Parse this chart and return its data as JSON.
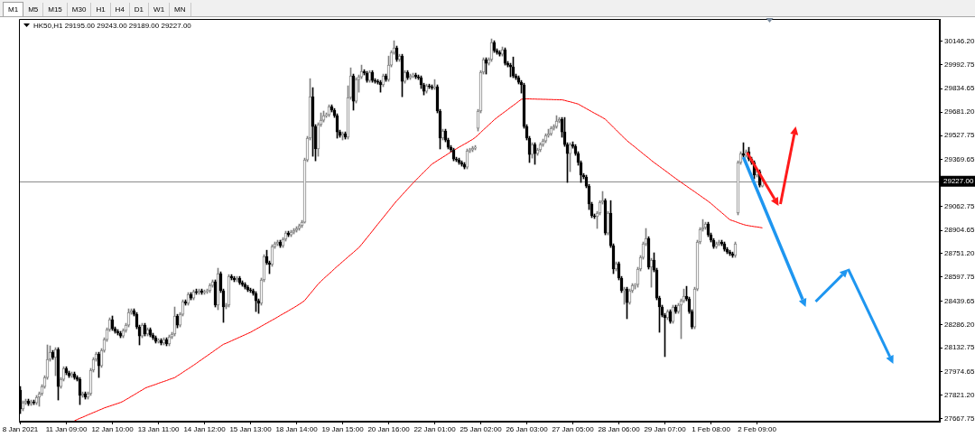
{
  "chart_data": {
    "type": "candlestick",
    "title": "HK50,H1 29195.00 29243.00 29189.00 29227.00",
    "annotations": [
      "M1",
      "M5",
      "M15",
      "M30",
      "H1",
      "H4",
      "D1",
      "W1",
      "MN"
    ],
    "categories": [
      "8 Jan 2021",
      null,
      null,
      null,
      null,
      null,
      null,
      null,
      null,
      null,
      null,
      null,
      null,
      null,
      null,
      null,
      null,
      "11 Jan 09:00",
      null,
      null,
      null,
      null,
      null,
      null,
      null,
      null,
      null,
      null,
      null,
      null,
      null,
      null,
      null,
      null,
      "12 Jan 10:00",
      null,
      null,
      null,
      null,
      null,
      null,
      null,
      null,
      null,
      null,
      null,
      null,
      null,
      null,
      null,
      null,
      "13 Jan 11:00",
      null,
      null,
      null,
      null,
      null,
      null,
      null,
      null,
      null,
      null,
      null,
      null,
      null,
      null,
      null,
      null,
      "14 Jan 12:00",
      null,
      null,
      null,
      null,
      null,
      null,
      null,
      null,
      null,
      null,
      null,
      null,
      null,
      null,
      null,
      null,
      "15 Jan 13:00",
      null,
      null,
      null,
      null,
      null,
      null,
      null,
      null,
      null,
      null,
      null,
      null,
      null,
      null,
      null,
      null,
      "18 Jan 14:00",
      null,
      null,
      null,
      null,
      null,
      null,
      null,
      null,
      null,
      null,
      null,
      null,
      null,
      null,
      null,
      null,
      "19 Jan 15:00",
      null,
      null,
      null,
      null,
      null,
      null,
      null,
      null,
      null,
      null,
      null,
      null,
      null,
      null,
      null,
      null,
      "20 Jan 16:00",
      null,
      null,
      null,
      null,
      null,
      null,
      null,
      null,
      null,
      null,
      null,
      null,
      null,
      null,
      null,
      null,
      "22 Jan 01:00",
      null,
      null,
      null,
      null,
      null,
      null,
      null,
      null,
      null,
      null,
      null,
      null,
      null,
      null,
      null,
      null,
      "25 Jan 02:00",
      null,
      null,
      null,
      null,
      null,
      null,
      null,
      null,
      null,
      null,
      null,
      null,
      null,
      null,
      null,
      null,
      "26 Jan 03:00",
      null,
      null,
      null,
      null,
      null,
      null,
      null,
      null,
      null,
      null,
      null,
      null,
      null,
      null,
      null,
      null,
      "27 Jan 05:00",
      null,
      null,
      null,
      null,
      null,
      null,
      null,
      null,
      null,
      null,
      null,
      null,
      null,
      null,
      null,
      null,
      "28 Jan 06:00",
      null,
      null,
      null,
      null,
      null,
      null,
      null,
      null,
      null,
      null,
      null,
      null,
      null,
      null,
      null,
      null,
      "29 Jan 07:00",
      null,
      null,
      null,
      null,
      null,
      null,
      null,
      null,
      null,
      null,
      null,
      null,
      null,
      null,
      null,
      null,
      "1 Feb 08:00",
      null,
      null,
      null,
      null,
      null,
      null,
      null,
      null,
      null,
      null,
      null,
      null,
      null,
      null,
      null,
      null,
      "2 Feb 09:00",
      null,
      null,
      null,
      null,
      null,
      null,
      null,
      null,
      null,
      null,
      null,
      null,
      null,
      null,
      null,
      null,
      null,
      null,
      null,
      null,
      null,
      null,
      null,
      null,
      null,
      null,
      null,
      null,
      null,
      null,
      null,
      null,
      null,
      null,
      null,
      null,
      null,
      null,
      null,
      null,
      null,
      null,
      null,
      null,
      null,
      null,
      null,
      null,
      null,
      null,
      null,
      null,
      null,
      null,
      null,
      null,
      null,
      null,
      null,
      null,
      null,
      null,
      null,
      null,
      null,
      null,
      null
    ],
    "ohlc": [
      [
        27855,
        27879,
        27701,
        27731
      ],
      [
        27731,
        27784,
        27719,
        27772
      ],
      [
        27772,
        27796,
        27760,
        27784
      ],
      [
        27784,
        27796,
        27754,
        27766
      ],
      [
        27766,
        27790,
        27754,
        27778
      ],
      [
        27778,
        27790,
        27760,
        27772
      ],
      [
        27772,
        27820,
        27760,
        27808
      ],
      [
        27808,
        27843,
        27749,
        27832
      ],
      [
        27832,
        27891,
        27820,
        27879
      ],
      [
        27879,
        27950,
        27867,
        27938
      ],
      [
        27938,
        28152,
        27926,
        28057
      ],
      [
        28057,
        28146,
        28045,
        28104
      ],
      [
        28104,
        28116,
        28057,
        28069
      ],
      [
        28069,
        28134,
        27950,
        28122
      ],
      [
        28122,
        28134,
        27790,
        27879
      ],
      [
        27879,
        27938,
        27867,
        27926
      ],
      [
        27926,
        28009,
        27915,
        27998
      ],
      [
        27998,
        28009,
        27956,
        27968
      ],
      [
        27968,
        27980,
        27938,
        27950
      ],
      [
        27950,
        27974,
        27938,
        27962
      ],
      [
        27962,
        27974,
        27926,
        27938
      ],
      [
        27938,
        27950,
        27915,
        27926
      ],
      [
        27926,
        27938,
        27760,
        27820
      ],
      [
        27820,
        27843,
        27808,
        27832
      ],
      [
        27832,
        27843,
        27796,
        27808
      ],
      [
        27808,
        27843,
        27796,
        27832
      ],
      [
        27832,
        27998,
        27820,
        27986
      ],
      [
        27986,
        28069,
        27974,
        28057
      ],
      [
        28057,
        28104,
        28045,
        28092
      ],
      [
        28092,
        28104,
        27938,
        28015
      ],
      [
        28015,
        28128,
        28004,
        28116
      ],
      [
        28116,
        28199,
        28104,
        28187
      ],
      [
        28187,
        28264,
        28175,
        28253
      ],
      [
        28253,
        28330,
        28241,
        28318
      ],
      [
        28318,
        28342,
        28247,
        28258
      ],
      [
        28258,
        28270,
        28229,
        28241
      ],
      [
        28241,
        28253,
        28217,
        28229
      ],
      [
        28229,
        28241,
        28199,
        28211
      ],
      [
        28211,
        28258,
        28199,
        28247
      ],
      [
        28247,
        28294,
        28235,
        28282
      ],
      [
        28282,
        28389,
        28270,
        28365
      ],
      [
        28365,
        28389,
        28353,
        28377
      ],
      [
        28377,
        28389,
        28342,
        28353
      ],
      [
        28353,
        28365,
        28258,
        28270
      ],
      [
        28270,
        28282,
        28152,
        28211
      ],
      [
        28211,
        28294,
        28199,
        28282
      ],
      [
        28282,
        28294,
        28211,
        28223
      ],
      [
        28223,
        28264,
        28211,
        28253
      ],
      [
        28253,
        28264,
        28205,
        28217
      ],
      [
        28217,
        28229,
        28187,
        28199
      ],
      [
        28199,
        28211,
        28164,
        28175
      ],
      [
        28175,
        28193,
        28164,
        28181
      ],
      [
        28181,
        28193,
        28152,
        28164
      ],
      [
        28164,
        28199,
        28152,
        28187
      ],
      [
        28187,
        28199,
        28146,
        28158
      ],
      [
        28158,
        28217,
        28146,
        28205
      ],
      [
        28205,
        28235,
        28193,
        28223
      ],
      [
        28223,
        28401,
        28211,
        28342
      ],
      [
        28342,
        28353,
        28264,
        28282
      ],
      [
        28282,
        28365,
        28270,
        28353
      ],
      [
        28353,
        28448,
        28342,
        28436
      ],
      [
        28436,
        28448,
        28413,
        28425
      ],
      [
        28425,
        28496,
        28413,
        28484
      ],
      [
        28484,
        28496,
        28448,
        28460
      ],
      [
        28460,
        28513,
        28448,
        28502
      ],
      [
        28502,
        28519,
        28484,
        28496
      ],
      [
        28496,
        28519,
        28484,
        28508
      ],
      [
        28508,
        28519,
        28484,
        28496
      ],
      [
        28496,
        28513,
        28484,
        28502
      ],
      [
        28502,
        28519,
        28490,
        28508
      ],
      [
        28508,
        28555,
        28496,
        28543
      ],
      [
        28543,
        28579,
        28531,
        28567
      ],
      [
        28567,
        28579,
        28401,
        28413
      ],
      [
        28413,
        28656,
        28383,
        28620
      ],
      [
        28620,
        28632,
        28496,
        28508
      ],
      [
        28508,
        28519,
        28300,
        28401
      ],
      [
        28401,
        28425,
        28389,
        28413
      ],
      [
        28413,
        28614,
        28401,
        28602
      ],
      [
        28602,
        28614,
        28579,
        28591
      ],
      [
        28591,
        28602,
        28567,
        28579
      ],
      [
        28579,
        28602,
        28567,
        28591
      ],
      [
        28591,
        28602,
        28549,
        28561
      ],
      [
        28561,
        28573,
        28537,
        28549
      ],
      [
        28549,
        28561,
        28519,
        28531
      ],
      [
        28531,
        28543,
        28502,
        28513
      ],
      [
        28513,
        28525,
        28496,
        28508
      ],
      [
        28508,
        28519,
        28478,
        28490
      ],
      [
        28490,
        28502,
        28371,
        28442
      ],
      [
        28442,
        28454,
        28359,
        28425
      ],
      [
        28425,
        28591,
        28413,
        28579
      ],
      [
        28579,
        28745,
        28567,
        28733
      ],
      [
        28733,
        28774,
        28680,
        28691
      ],
      [
        28691,
        28703,
        28620,
        28680
      ],
      [
        28680,
        28810,
        28668,
        28798
      ],
      [
        28798,
        28828,
        28786,
        28816
      ],
      [
        28816,
        28840,
        28804,
        28828
      ],
      [
        28828,
        28840,
        28792,
        28804
      ],
      [
        28804,
        28857,
        28792,
        28846
      ],
      [
        28846,
        28899,
        28834,
        28887
      ],
      [
        28887,
        28899,
        28863,
        28875
      ],
      [
        28875,
        28905,
        28863,
        28893
      ],
      [
        28893,
        28917,
        28881,
        28905
      ],
      [
        28905,
        28929,
        28893,
        28917
      ],
      [
        28917,
        28946,
        28905,
        28935
      ],
      [
        28935,
        28970,
        28923,
        28958
      ],
      [
        28958,
        29379,
        28952,
        29367
      ],
      [
        29367,
        29522,
        29356,
        29510
      ],
      [
        29510,
        29901,
        29498,
        29782
      ],
      [
        29782,
        29842,
        29391,
        29587
      ],
      [
        29587,
        29599,
        29361,
        29439
      ],
      [
        29439,
        29611,
        29391,
        29599
      ],
      [
        29599,
        29676,
        29587,
        29628
      ],
      [
        29628,
        29688,
        29616,
        29658
      ],
      [
        29658,
        29676,
        29646,
        29664
      ],
      [
        29664,
        29729,
        29652,
        29717
      ],
      [
        29717,
        29729,
        29682,
        29694
      ],
      [
        29694,
        29705,
        29646,
        29658
      ],
      [
        29658,
        29670,
        29510,
        29551
      ],
      [
        29551,
        29563,
        29516,
        29528
      ],
      [
        29528,
        29551,
        29498,
        29539
      ],
      [
        29539,
        29551,
        29504,
        29516
      ],
      [
        29516,
        29854,
        29504,
        29777
      ],
      [
        29777,
        29972,
        29765,
        29919
      ],
      [
        29919,
        29931,
        29694,
        29753
      ],
      [
        29753,
        29907,
        29741,
        29895
      ],
      [
        29895,
        29925,
        29812,
        29913
      ],
      [
        29913,
        29990,
        29901,
        29949
      ],
      [
        29949,
        29960,
        29925,
        29937
      ],
      [
        29937,
        29949,
        29877,
        29889
      ],
      [
        29889,
        29954,
        29877,
        29943
      ],
      [
        29943,
        29954,
        29877,
        29889
      ],
      [
        29889,
        29901,
        29871,
        29883
      ],
      [
        29883,
        29895,
        29865,
        29877
      ],
      [
        29877,
        29889,
        29812,
        29860
      ],
      [
        29860,
        29931,
        29848,
        29919
      ],
      [
        29919,
        29931,
        29883,
        29895
      ],
      [
        29895,
        30049,
        29883,
        29990
      ],
      [
        29990,
        30085,
        29978,
        30073
      ],
      [
        30073,
        30150,
        30061,
        30103
      ],
      [
        30103,
        30115,
        30014,
        30026
      ],
      [
        30026,
        30061,
        30014,
        30049
      ],
      [
        30049,
        30061,
        29782,
        29883
      ],
      [
        29883,
        29954,
        29871,
        29943
      ],
      [
        29943,
        29954,
        29895,
        29907
      ],
      [
        29907,
        29931,
        29895,
        29919
      ],
      [
        29919,
        29937,
        29907,
        29925
      ],
      [
        29925,
        29937,
        29901,
        29913
      ],
      [
        29913,
        29925,
        29895,
        29907
      ],
      [
        29907,
        29919,
        29836,
        29860
      ],
      [
        29860,
        29871,
        29794,
        29818
      ],
      [
        29818,
        29865,
        29806,
        29854
      ],
      [
        29854,
        29865,
        29836,
        29848
      ],
      [
        29848,
        29860,
        29830,
        29842
      ],
      [
        29842,
        29895,
        29830,
        29848
      ],
      [
        29848,
        29860,
        29676,
        29688
      ],
      [
        29688,
        29699,
        29439,
        29510
      ],
      [
        29510,
        29569,
        29498,
        29557
      ],
      [
        29557,
        29569,
        29486,
        29498
      ],
      [
        29498,
        29510,
        29439,
        29450
      ],
      [
        29450,
        29462,
        29421,
        29433
      ],
      [
        29433,
        29444,
        29361,
        29373
      ],
      [
        29373,
        29385,
        29356,
        29367
      ],
      [
        29367,
        29379,
        29338,
        29350
      ],
      [
        29350,
        29361,
        29326,
        29338
      ],
      [
        29338,
        29350,
        29308,
        29320
      ],
      [
        29320,
        29439,
        29308,
        29427
      ],
      [
        29427,
        29444,
        29415,
        29433
      ],
      [
        29433,
        29456,
        29421,
        29444
      ],
      [
        29444,
        29462,
        29433,
        29450
      ],
      [
        29575,
        29699,
        29557,
        29688
      ],
      [
        29688,
        29954,
        29676,
        29943
      ],
      [
        29943,
        30038,
        29931,
        30026
      ],
      [
        30026,
        30038,
        29931,
        30002
      ],
      [
        30002,
        30038,
        29990,
        30026
      ],
      [
        30026,
        30162,
        30014,
        30138
      ],
      [
        30138,
        30150,
        30073,
        30085
      ],
      [
        30085,
        30097,
        30061,
        30073
      ],
      [
        30073,
        30085,
        30049,
        30061
      ],
      [
        30061,
        30109,
        30049,
        30091
      ],
      [
        30091,
        30103,
        29990,
        30002
      ],
      [
        30002,
        30014,
        29978,
        29990
      ],
      [
        29990,
        30002,
        29913,
        29978
      ],
      [
        29978,
        30043,
        29907,
        29919
      ],
      [
        29919,
        29931,
        29895,
        29907
      ],
      [
        29907,
        29919,
        29866,
        29877
      ],
      [
        29877,
        29889,
        29806,
        29860
      ],
      [
        29860,
        29871,
        29575,
        29587
      ],
      [
        29587,
        29599,
        29498,
        29510
      ],
      [
        29510,
        29522,
        29350,
        29403
      ],
      [
        29403,
        29480,
        29379,
        29468
      ],
      [
        29468,
        29480,
        29338,
        29409
      ],
      [
        29409,
        29444,
        29397,
        29433
      ],
      [
        29433,
        29480,
        29421,
        29468
      ],
      [
        29468,
        29504,
        29456,
        29492
      ],
      [
        29492,
        29539,
        29480,
        29528
      ],
      [
        29528,
        29569,
        29516,
        29539
      ],
      [
        29539,
        29587,
        29528,
        29575
      ],
      [
        29575,
        29599,
        29563,
        29587
      ],
      [
        29587,
        29658,
        29575,
        29622
      ],
      [
        29622,
        29646,
        29611,
        29634
      ],
      [
        29634,
        29646,
        29516,
        29551
      ],
      [
        29551,
        29646,
        29456,
        29468
      ],
      [
        29468,
        29480,
        29219,
        29409
      ],
      [
        29409,
        29480,
        29290,
        29468
      ],
      [
        29468,
        29486,
        29444,
        29456
      ],
      [
        29456,
        29468,
        29397,
        29409
      ],
      [
        29409,
        29421,
        29332,
        29350
      ],
      [
        29350,
        29361,
        29219,
        29267
      ],
      [
        29267,
        29278,
        29243,
        29255
      ],
      [
        29255,
        29267,
        29184,
        29195
      ],
      [
        29195,
        29207,
        29041,
        29077
      ],
      [
        29077,
        29089,
        28988,
        29000
      ],
      [
        29000,
        29012,
        28982,
        28994
      ],
      [
        28994,
        29029,
        28917,
        29018
      ],
      [
        29018,
        29100,
        29006,
        29089
      ],
      [
        29089,
        29160,
        29077,
        29100
      ],
      [
        29100,
        29112,
        28875,
        28887
      ],
      [
        28887,
        29029,
        28875,
        29018
      ],
      [
        29018,
        29100,
        28792,
        28804
      ],
      [
        28804,
        28816,
        28620,
        28650
      ],
      [
        28650,
        28697,
        28638,
        28685
      ],
      [
        28685,
        28697,
        28579,
        28591
      ],
      [
        28591,
        28602,
        28496,
        28508
      ],
      [
        28508,
        28531,
        28419,
        28519
      ],
      [
        28519,
        28531,
        28324,
        28430
      ],
      [
        28430,
        28519,
        28419,
        28508
      ],
      [
        28508,
        28555,
        28496,
        28543
      ],
      [
        28543,
        28555,
        28519,
        28549
      ],
      [
        28549,
        28662,
        28531,
        28650
      ],
      [
        28650,
        28739,
        28638,
        28727
      ],
      [
        28727,
        28828,
        28715,
        28816
      ],
      [
        28816,
        28917,
        28804,
        28851
      ],
      [
        28851,
        28863,
        28650,
        28662
      ],
      [
        28662,
        28721,
        28531,
        28709
      ],
      [
        28709,
        28757,
        28632,
        28644
      ],
      [
        28644,
        28656,
        28448,
        28460
      ],
      [
        28460,
        28472,
        28235,
        28401
      ],
      [
        28401,
        28413,
        28336,
        28347
      ],
      [
        28347,
        28359,
        28075,
        28330
      ],
      [
        28330,
        28383,
        28318,
        28371
      ],
      [
        28371,
        28383,
        28294,
        28306
      ],
      [
        28306,
        28413,
        28294,
        28401
      ],
      [
        28401,
        28413,
        28359,
        28371
      ],
      [
        28371,
        28425,
        28359,
        28413
      ],
      [
        28413,
        28454,
        28193,
        28442
      ],
      [
        28442,
        28519,
        28430,
        28472
      ],
      [
        28472,
        28537,
        28442,
        28454
      ],
      [
        28454,
        28466,
        28359,
        28371
      ],
      [
        28371,
        28383,
        28258,
        28270
      ],
      [
        28270,
        28531,
        28258,
        28519
      ],
      [
        28519,
        28840,
        28508,
        28828
      ],
      [
        28828,
        28923,
        28816,
        28911
      ],
      [
        28911,
        28976,
        28899,
        28923
      ],
      [
        28923,
        28958,
        28911,
        28946
      ],
      [
        28946,
        28958,
        28863,
        28875
      ],
      [
        28875,
        28887,
        28828,
        28840
      ],
      [
        28840,
        28851,
        28786,
        28798
      ],
      [
        28798,
        28828,
        28786,
        28816
      ],
      [
        28816,
        28840,
        28804,
        28828
      ],
      [
        28828,
        28840,
        28804,
        28816
      ],
      [
        28816,
        28828,
        28768,
        28780
      ],
      [
        28780,
        28792,
        28751,
        28762
      ],
      [
        28762,
        28774,
        28739,
        28751
      ],
      [
        28751,
        28762,
        28727,
        28739
      ],
      [
        28739,
        28828,
        28727,
        28816
      ],
      [
        29018,
        29361,
        29006,
        29350
      ],
      [
        29350,
        29421,
        29338,
        29409
      ],
      [
        29409,
        29480,
        29385,
        29397
      ],
      [
        29397,
        29433,
        29385,
        29421
      ],
      [
        29421,
        29450,
        29361,
        29373
      ],
      [
        29373,
        29385,
        29338,
        29350
      ],
      [
        29350,
        29361,
        29243,
        29267
      ],
      [
        29267,
        29302,
        29255,
        29290
      ],
      [
        29290,
        29302,
        29189,
        29201
      ],
      [
        29195,
        29243,
        29189,
        29227
      ],
      null,
      null,
      null,
      null,
      null,
      null,
      null,
      null,
      null,
      null,
      null,
      null,
      null,
      null,
      null,
      null,
      null,
      null,
      null,
      null,
      null,
      null,
      null,
      null,
      null,
      null,
      null,
      null,
      null,
      null,
      null,
      null,
      null,
      null,
      null,
      null,
      null,
      null,
      null,
      null,
      null,
      null,
      null,
      null,
      null,
      null,
      null,
      null,
      null,
      null,
      null,
      null,
      null,
      null,
      null,
      null,
      null,
      null,
      null,
      null,
      null,
      null,
      null,
      null,
      null
    ],
    "colors": [
      "#000000",
      "#808080",
      "#808080",
      "#000000",
      "#808080",
      "#000000",
      "#808080",
      "#808080",
      "#808080",
      "#808080",
      "#808080",
      "#808080",
      "#000000",
      "#808080",
      "#000000",
      "#808080",
      "#808080",
      "#000000",
      "#000000",
      "#808080",
      "#000000",
      "#000000",
      "#000000",
      "#808080",
      "#000000",
      "#808080",
      "#808080",
      "#808080",
      "#808080",
      "#000000",
      "#808080",
      "#808080",
      "#808080",
      "#808080",
      "#000000",
      "#000000",
      "#000000",
      "#000000",
      "#808080",
      "#808080",
      "#808080",
      "#808080",
      "#000000",
      "#000000",
      "#000000",
      "#808080",
      "#000000",
      "#808080",
      "#000000",
      "#000000",
      "#000000",
      "#808080",
      "#000000",
      "#808080",
      "#000000",
      "#808080",
      "#808080",
      "#808080",
      "#000000",
      "#808080",
      "#808080",
      "#000000",
      "#808080",
      "#000000",
      "#808080",
      "#000000",
      "#808080",
      "#000000",
      "#808080",
      "#808080",
      "#808080",
      "#808080",
      "#000000",
      "#808080",
      "#000000",
      "#000000",
      "#808080",
      "#808080",
      "#000000",
      "#000000",
      "#808080",
      "#000000",
      "#000000",
      "#000000",
      "#000000",
      "#000000",
      "#000000",
      "#000000",
      "#000000",
      "#808080",
      "#808080",
      "#000000",
      "#000000",
      "#808080",
      "#808080",
      "#808080",
      "#000000",
      "#808080",
      "#808080",
      "#000000",
      "#808080",
      "#808080",
      "#808080",
      "#808080",
      "#808080",
      "#808080",
      "#808080",
      "#808080",
      "#000000",
      "#000000",
      "#808080",
      "#808080",
      "#808080",
      "#808080",
      "#808080",
      "#000000",
      "#000000",
      "#000000",
      "#000000",
      "#808080",
      "#000000",
      "#808080",
      "#808080",
      "#000000",
      "#808080",
      "#808080",
      "#808080",
      "#000000",
      "#000000",
      "#808080",
      "#000000",
      "#000000",
      "#000000",
      "#000000",
      "#808080",
      "#000000",
      "#808080",
      "#808080",
      "#808080",
      "#000000",
      "#808080",
      "#000000",
      "#808080",
      "#000000",
      "#808080",
      "#808080",
      "#000000",
      "#000000",
      "#000000",
      "#000000",
      "#808080",
      "#000000",
      "#000000",
      "#808080",
      "#000000",
      "#000000",
      "#808080",
      "#000000",
      "#000000",
      "#000000",
      "#000000",
      "#000000",
      "#000000",
      "#000000",
      "#000000",
      "#808080",
      "#808080",
      "#808080",
      "#808080",
      "#808080",
      "#808080",
      "#808080",
      "#000000",
      "#808080",
      "#808080",
      "#000000",
      "#000000",
      "#000000",
      "#808080",
      "#000000",
      "#000000",
      "#000000",
      "#000000",
      "#000000",
      "#000000",
      "#000000",
      "#000000",
      "#000000",
      "#000000",
      "#808080",
      "#000000",
      "#808080",
      "#808080",
      "#808080",
      "#808080",
      "#808080",
      "#808080",
      "#808080",
      "#808080",
      "#808080",
      "#000000",
      "#000000",
      "#000000",
      "#808080",
      "#000000",
      "#000000",
      "#000000",
      "#000000",
      "#000000",
      "#000000",
      "#000000",
      "#000000",
      "#000000",
      "#808080",
      "#808080",
      "#808080",
      "#000000",
      "#808080",
      "#000000",
      "#000000",
      "#808080",
      "#000000",
      "#000000",
      "#808080",
      "#000000",
      "#808080",
      "#808080",
      "#808080",
      "#808080",
      "#808080",
      "#808080",
      "#808080",
      "#000000",
      "#808080",
      "#000000",
      "#000000",
      "#000000",
      "#000000",
      "#000000",
      "#808080",
      "#000000",
      "#808080",
      "#000000",
      "#808080",
      "#808080",
      "#808080",
      "#000000",
      "#000000",
      "#000000",
      "#808080",
      "#808080",
      "#808080",
      "#808080",
      "#808080",
      "#000000",
      "#000000",
      "#000000",
      "#808080",
      "#808080",
      "#000000",
      "#000000",
      "#000000",
      "#000000",
      "#000000",
      "#808080",
      "#808080",
      "#808080",
      "#000000",
      "#808080",
      "#000000",
      "#000000",
      "#000000",
      "#808080",
      "#000000",
      "#808080",
      null,
      null,
      null,
      null,
      null,
      null,
      null,
      null,
      null,
      null,
      null,
      null,
      null,
      null,
      null,
      null,
      null,
      null,
      null,
      null,
      null,
      null,
      null,
      null,
      null,
      null,
      null,
      null,
      null,
      null,
      null,
      null,
      null,
      null,
      null,
      null,
      null,
      null,
      null,
      null,
      null,
      null,
      null,
      null,
      null,
      null,
      null,
      null,
      null,
      null,
      null,
      null,
      null,
      null,
      null,
      null,
      null,
      null,
      null,
      null,
      null,
      null,
      null,
      null,
      null
    ],
    "series": [
      {
        "type": "line",
        "color": "#ff0000",
        "values": [
          null,
          null,
          null,
          null,
          null,
          null,
          null,
          null,
          null,
          null,
          null,
          null,
          null,
          null,
          null,
          null,
          null,
          null,
          null,
          null,
          27654,
          27662,
          27670,
          27677,
          27685,
          27693,
          27700,
          27708,
          27715,
          27723,
          27730,
          27738,
          27744,
          27750,
          27756,
          27762,
          27768,
          27774,
          27782,
          27793,
          27803,
          27814,
          27824,
          27835,
          27846,
          27856,
          27867,
          27875,
          27881,
          27887,
          27893,
          27900,
          27906,
          27912,
          27918,
          27925,
          27931,
          27937,
          27949,
          27960,
          27972,
          27984,
          27995,
          28007,
          28019,
          28031,
          28044,
          28056,
          28069,
          28081,
          28094,
          28106,
          28119,
          28131,
          28144,
          28156,
          28163,
          28171,
          28179,
          28187,
          28195,
          28203,
          28211,
          28219,
          28227,
          28235,
          28245,
          28255,
          28265,
          28275,
          28285,
          28295,
          28305,
          28315,
          28325,
          28335,
          28346,
          28356,
          28366,
          28376,
          28387,
          28397,
          28408,
          28419,
          28431,
          28444,
          28466,
          28488,
          28509,
          28531,
          28552,
          28570,
          28587,
          28603,
          28619,
          28635,
          28652,
          28668,
          28683,
          28699,
          28714,
          28730,
          28745,
          28760,
          28776,
          28791,
          28812,
          28834,
          28856,
          28878,
          28900,
          28923,
          28945,
          28967,
          28989,
          29011,
          29033,
          29056,
          29078,
          29099,
          29118,
          29138,
          29157,
          29177,
          29196,
          29215,
          29233,
          29251,
          29269,
          29287,
          29304,
          29322,
          29340,
          29351,
          29363,
          29374,
          29385,
          29396,
          29408,
          29419,
          29430,
          29440,
          29451,
          29461,
          29471,
          29481,
          29492,
          29502,
          29515,
          29531,
          29548,
          29565,
          29581,
          29598,
          29614,
          29631,
          29645,
          29659,
          29672,
          29685,
          29698,
          29712,
          29725,
          29738,
          29752,
          29765,
          29769,
          29768,
          29768,
          29767,
          29767,
          29766,
          29766,
          29765,
          29765,
          29764,
          29764,
          29763,
          29763,
          29762,
          29762,
          29758,
          29753,
          29749,
          29744,
          29739,
          29734,
          29724,
          29714,
          29704,
          29694,
          29684,
          29674,
          29665,
          29655,
          29645,
          29634,
          29617,
          29599,
          29581,
          29564,
          29546,
          29528,
          29511,
          29494,
          29479,
          29465,
          29451,
          29436,
          29422,
          29407,
          29393,
          29379,
          29364,
          29350,
          29337,
          29324,
          29311,
          29298,
          29285,
          29271,
          29258,
          29245,
          29232,
          29220,
          29207,
          29195,
          29182,
          29170,
          29158,
          29145,
          29133,
          29120,
          29108,
          29095,
          29081,
          29066,
          29050,
          29035,
          29020,
          29005,
          28989,
          28974,
          28968,
          28962,
          28955,
          28949,
          28943,
          28938,
          28935,
          28932,
          28929,
          28927,
          28924,
          28921,
          null,
          null,
          null,
          null,
          null,
          null,
          null,
          null,
          null,
          null,
          null,
          null,
          null,
          null,
          null,
          null,
          null,
          null,
          null,
          null,
          null,
          null,
          null,
          null,
          null,
          null,
          null,
          null,
          null,
          null,
          null,
          null,
          null,
          null,
          null,
          null,
          null,
          null,
          null,
          null,
          null,
          null,
          null,
          null,
          null,
          null,
          null,
          null,
          null,
          null,
          null,
          null,
          null,
          null,
          null,
          null,
          null,
          null,
          null,
          null,
          null,
          null,
          null,
          null,
          null
        ]
      }
    ],
    "ylim": [
      27648,
      30293
    ],
    "yticks": [
      {
        "value": 30146.2,
        "label": "30146.20"
      },
      {
        "value": 29992.75,
        "label": "29992.75"
      },
      {
        "value": 29834.65,
        "label": "29834.65"
      },
      {
        "value": 29681.2,
        "label": "29681.20"
      },
      {
        "value": 29527.75,
        "label": "29527.75"
      },
      {
        "value": 29369.65,
        "label": "29369.65"
      },
      {
        "value": 29062.75,
        "label": "29062.75"
      },
      {
        "value": 28904.65,
        "label": "28904.65"
      },
      {
        "value": 28751.2,
        "label": "28751.20"
      },
      {
        "value": 28597.75,
        "label": "28597.75"
      },
      {
        "value": 28439.65,
        "label": "28439.65"
      },
      {
        "value": 28286.2,
        "label": "28286.20"
      },
      {
        "value": 28132.75,
        "label": "28132.75"
      },
      {
        "value": 27974.65,
        "label": "27974.65"
      },
      {
        "value": 27821.2,
        "label": "27821.20"
      },
      {
        "value": 27667.75,
        "label": "27667.75"
      }
    ],
    "ref_lines": [
      {
        "axis": "y",
        "value": 29227,
        "label": "29227.00",
        "color": "#8c8c8c"
      }
    ]
  }
}
